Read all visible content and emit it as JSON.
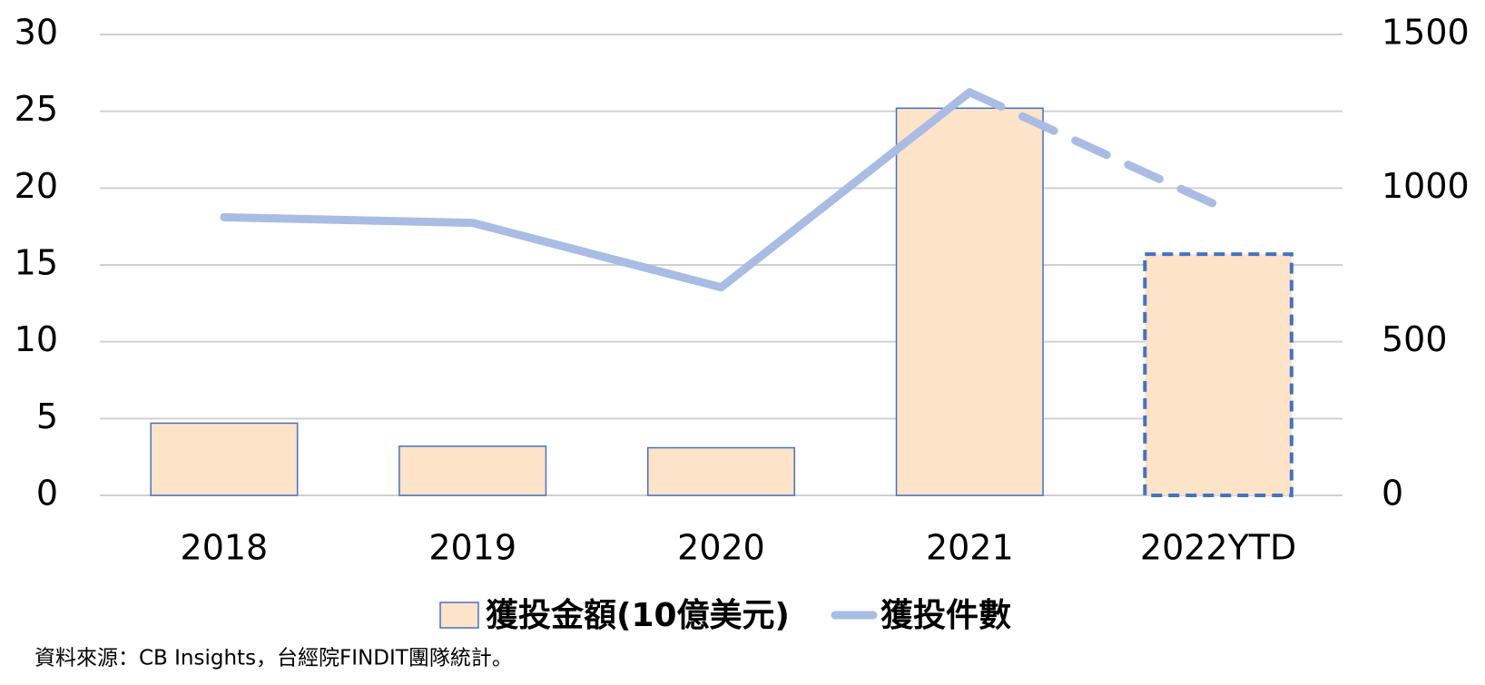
{
  "chart_data": {
    "type": "bar_line",
    "categories": [
      "2018",
      "2019",
      "2020",
      "2021",
      "2022YTD"
    ],
    "series": [
      {
        "name": "獲投金額(10億美元)",
        "type": "bar",
        "color": "#fde3c7",
        "edge_color": "#4472c4",
        "values": [
          4.7,
          3.2,
          3.1,
          25.2,
          15.7
        ]
      },
      {
        "name": "獲投件數",
        "type": "line",
        "axis": "y2",
        "color": "#a9bce4",
        "values": [
          905,
          887,
          677,
          1312,
          942
        ]
      }
    ],
    "dashed_from_index": 4,
    "ylim": [
      0,
      30
    ],
    "yticks": [
      0,
      5,
      10,
      15,
      20,
      25,
      30
    ],
    "y2lim": [
      0,
      1500
    ],
    "y2ticks": [
      0,
      500,
      1000,
      1500
    ],
    "grid": true,
    "legend": "bottom",
    "source": "資料來源：CB Insights，台經院FINDIT團隊統計。"
  }
}
